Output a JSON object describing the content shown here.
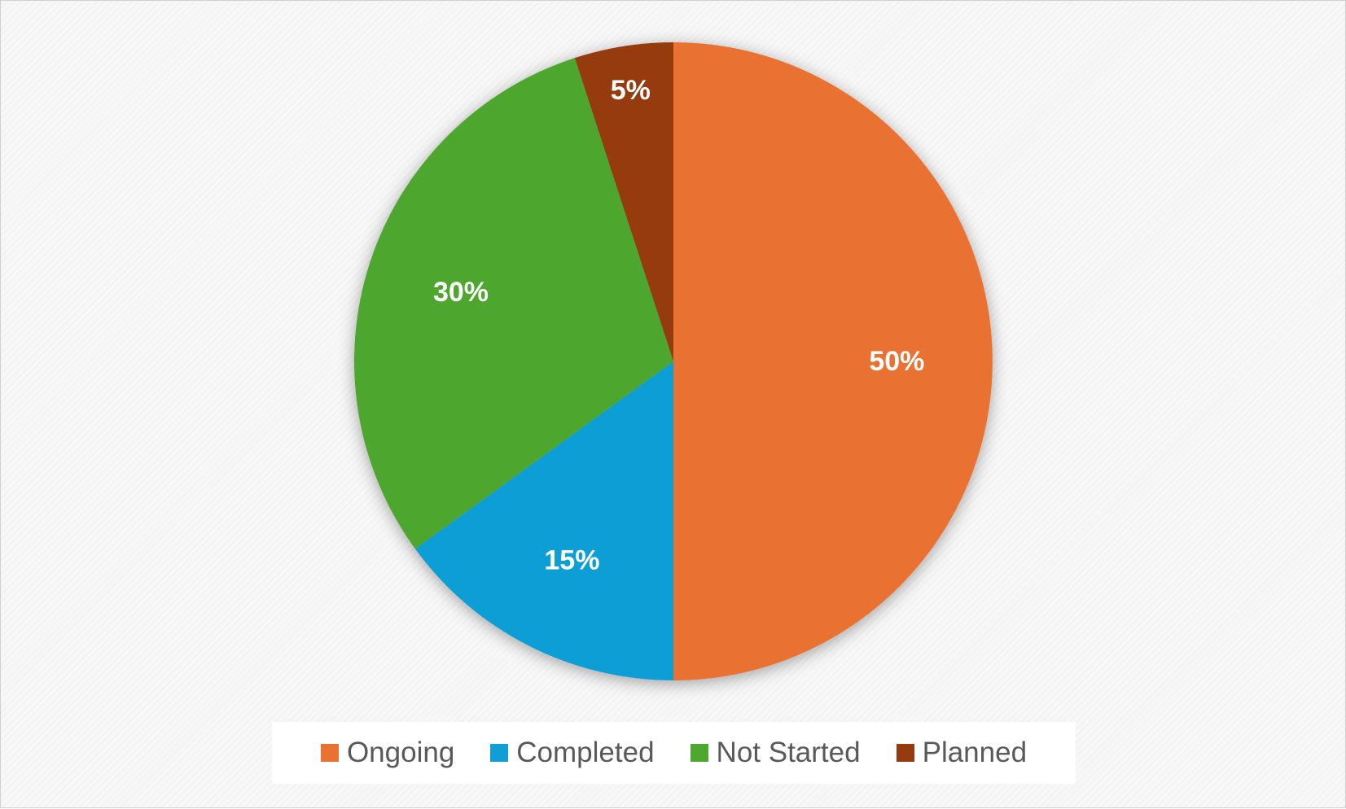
{
  "chart_data": {
    "type": "pie",
    "title": "",
    "slices": [
      {
        "label": "Ongoing",
        "value": 50,
        "display": "50%",
        "color": "#E97132"
      },
      {
        "label": "Completed",
        "value": 15,
        "display": "15%",
        "color": "#0F9ED5"
      },
      {
        "label": "Not Started",
        "value": 30,
        "display": "30%",
        "color": "#4EA72E"
      },
      {
        "label": "Planned",
        "value": 5,
        "display": "5%",
        "color": "#953B0F"
      }
    ],
    "start_angle_deg": 0,
    "direction": "clockwise",
    "legend_position": "bottom"
  }
}
